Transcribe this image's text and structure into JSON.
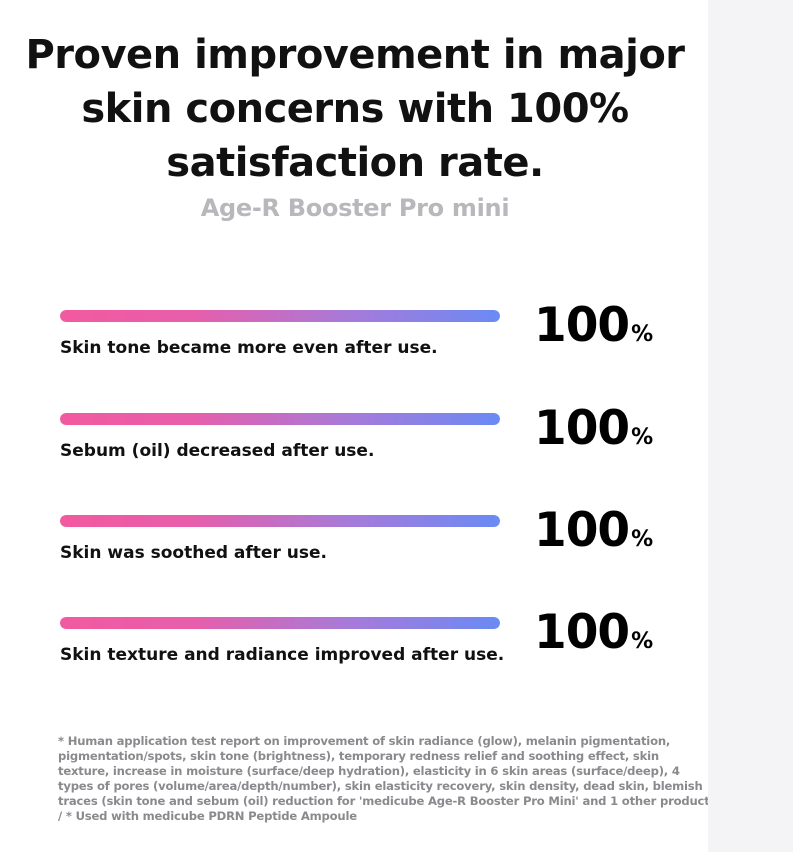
{
  "headline": {
    "line1": "Proven improvement in major",
    "line2": "skin concerns with 100%",
    "line3": "satisfaction rate."
  },
  "subtitle": "Age-R Booster Pro mini",
  "stats": [
    {
      "label": "Skin tone became more even after use.",
      "value": "100",
      "unit": "%",
      "percent": 100
    },
    {
      "label": "Sebum (oil) decreased after use.",
      "value": "100",
      "unit": "%",
      "percent": 100
    },
    {
      "label": "Skin was soothed after use.",
      "value": "100",
      "unit": "%",
      "percent": 100
    },
    {
      "label": "Skin texture and radiance improved after use.",
      "value": "100",
      "unit": "%",
      "percent": 100
    }
  ],
  "footnote": "* Human application test report on improvement of skin radiance (glow), melanin pigmentation, pigmentation/spots, skin tone (brightness), temporary redness relief and soothing effect, skin texture, increase in moisture (surface/deep hydration), elasticity in 6 skin areas (surface/deep), 4 types of pores (volume/area/depth/number), skin elasticity recovery, skin density, dead skin, blemish traces (skin tone and sebum (oil) reduction for 'medicube Age-R Booster Pro Mini' and 1 other product / * Used with medicube PDRN Peptide Ampoule",
  "colors": {
    "bar_gradient_start": "#f25a9f",
    "bar_gradient_end": "#6a8af5",
    "subtitle": "#b8b8bc",
    "footnote": "#8a8a8e"
  }
}
